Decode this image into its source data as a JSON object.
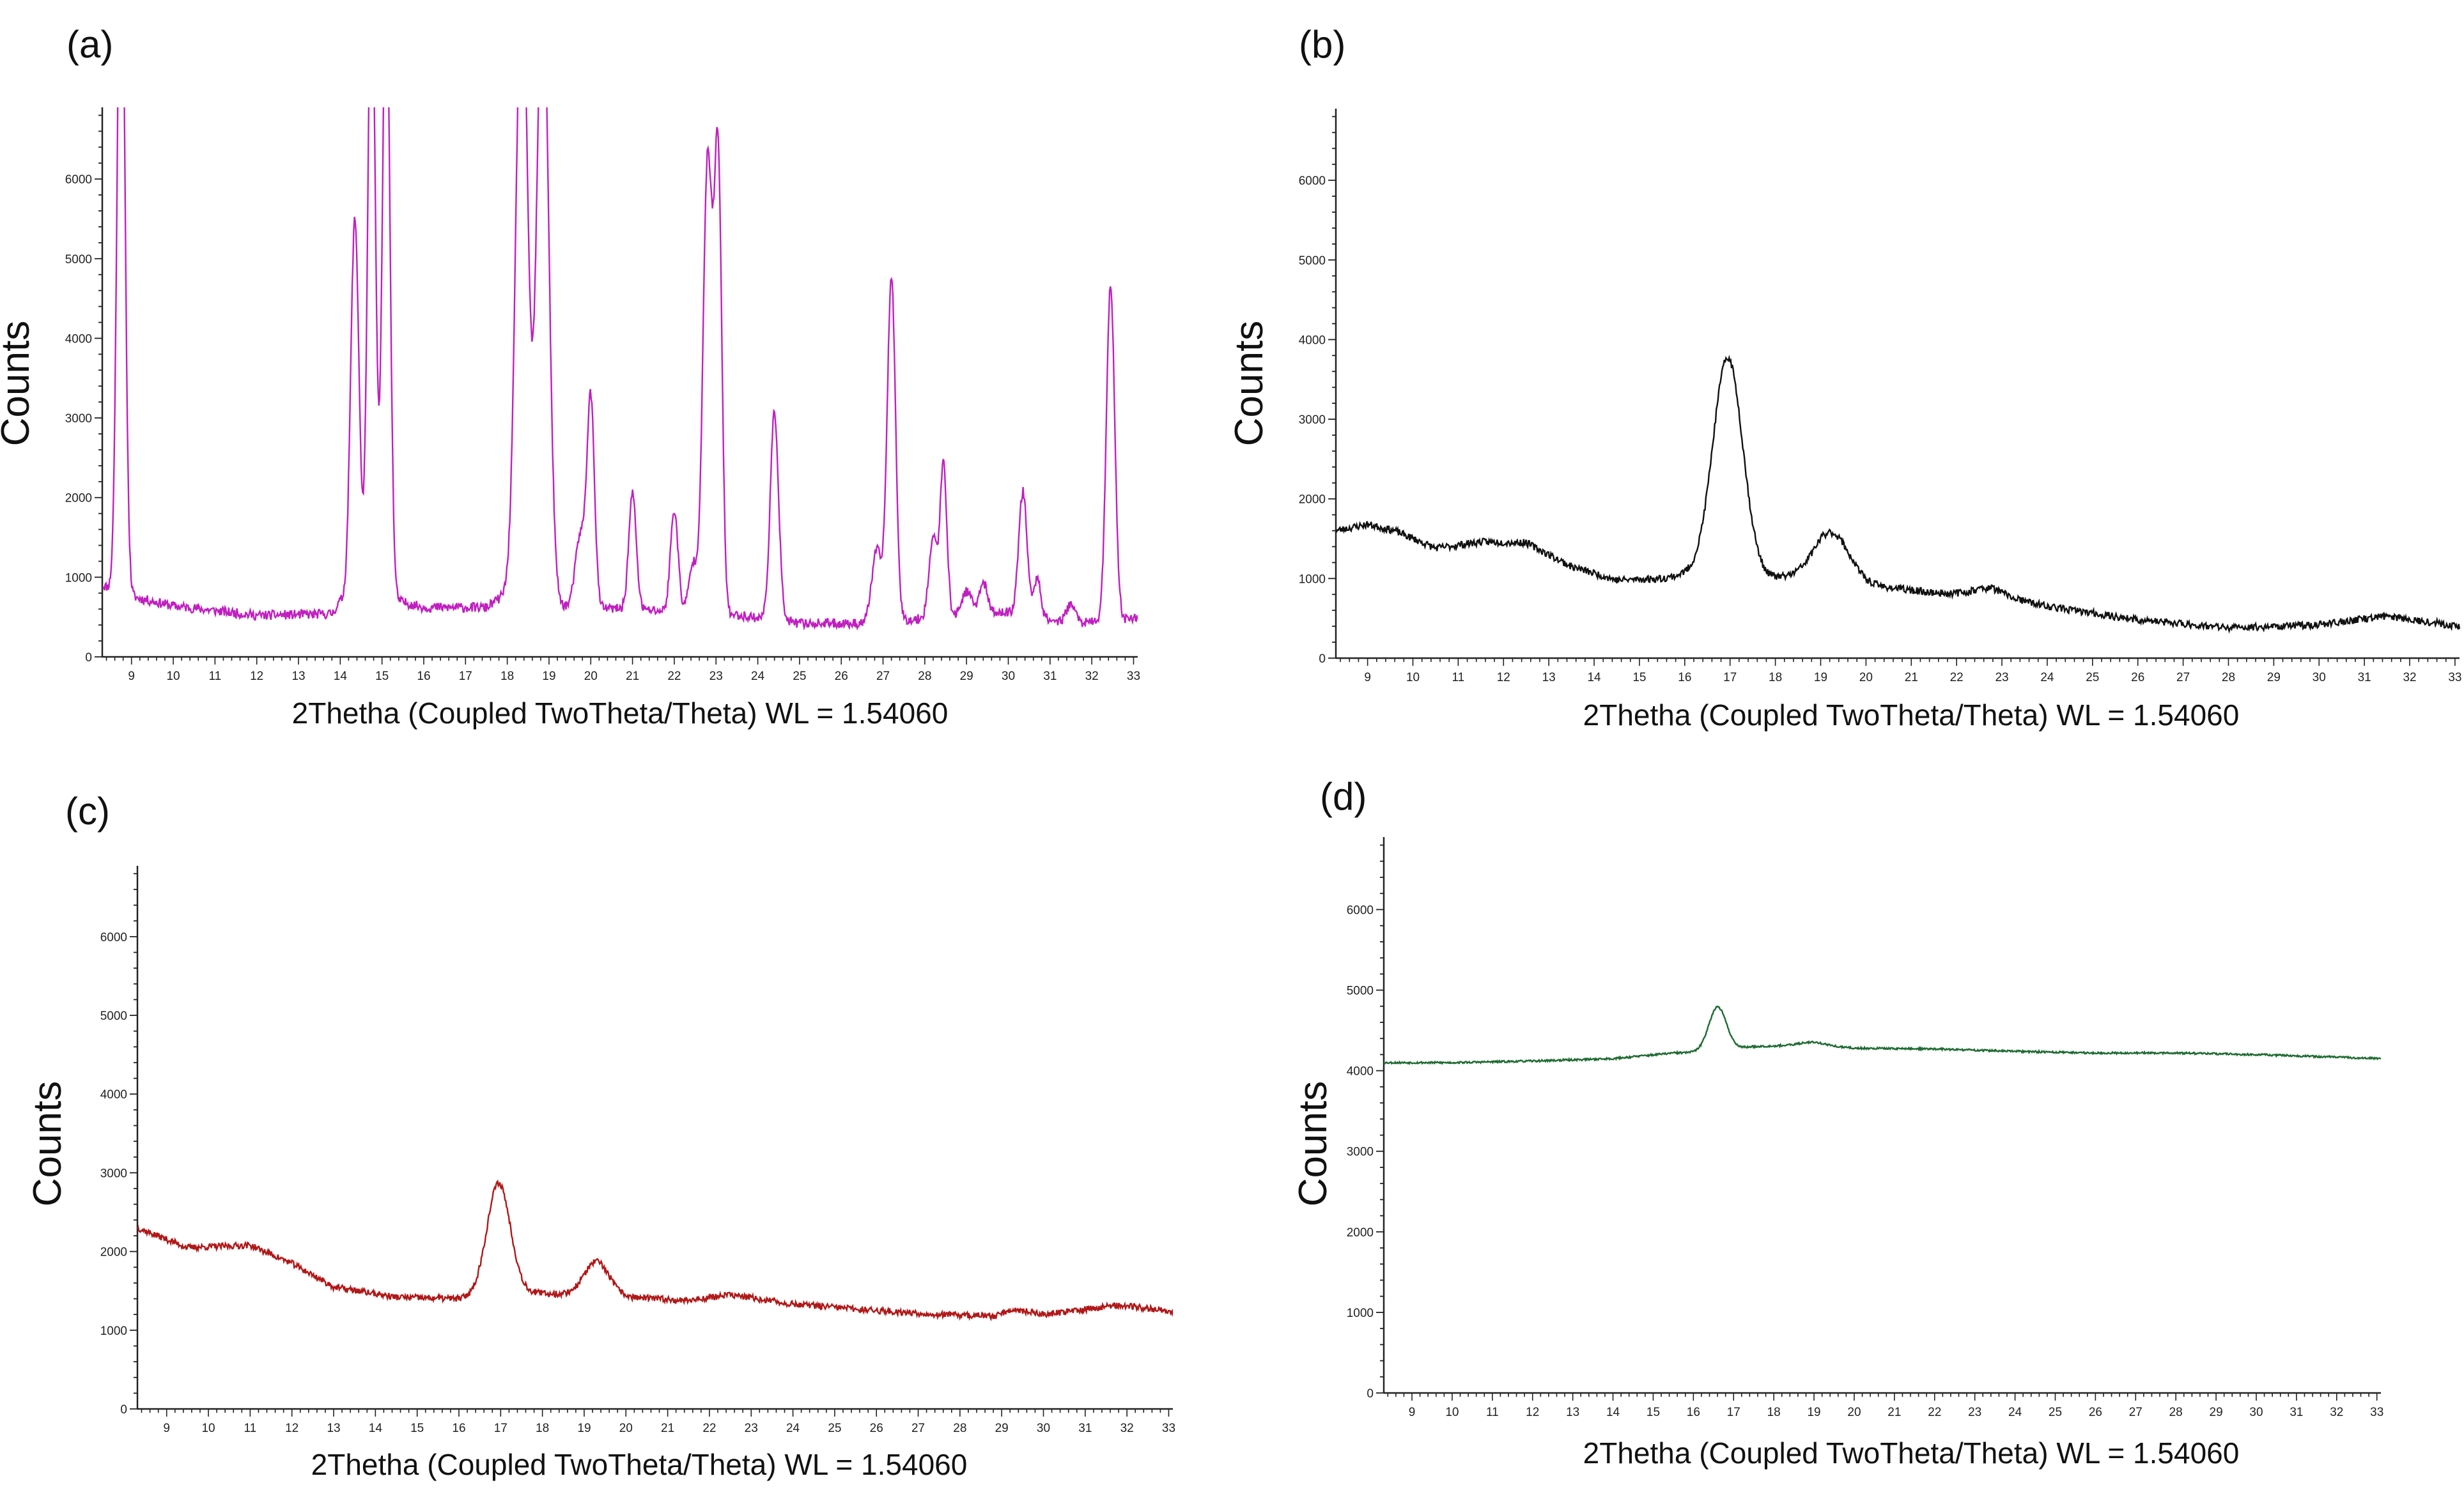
{
  "figure": {
    "panels": [
      "(a)",
      "(b)",
      "(c)",
      "(d)"
    ]
  },
  "chart_data": [
    {
      "panel": "(a)",
      "type": "line",
      "title": "",
      "xlabel": "2Thetha (Coupled TwoTheta/Theta) WL = 1.54060",
      "ylabel": "Counts",
      "xlim": [
        8.3,
        33.1
      ],
      "ylim": [
        0,
        6900
      ],
      "xticks": [
        9,
        10,
        11,
        12,
        13,
        14,
        15,
        16,
        17,
        18,
        19,
        20,
        21,
        22,
        23,
        24,
        25,
        26,
        27,
        28,
        29,
        30,
        31,
        32,
        33
      ],
      "yticks": [
        0,
        1000,
        2000,
        3000,
        4000,
        5000,
        6000
      ],
      "grid": false,
      "color": "#c020c0",
      "baseline": [
        [
          8.3,
          900
        ],
        [
          8.8,
          780
        ],
        [
          10,
          640
        ],
        [
          12,
          520
        ],
        [
          13.8,
          540
        ],
        [
          14.0,
          700
        ],
        [
          15.4,
          700
        ],
        [
          16,
          620
        ],
        [
          17.5,
          620
        ],
        [
          18.0,
          800
        ],
        [
          19.5,
          620
        ],
        [
          21,
          600
        ],
        [
          22.2,
          560
        ],
        [
          23.6,
          520
        ],
        [
          25.0,
          420
        ],
        [
          26.5,
          420
        ],
        [
          28,
          480
        ],
        [
          30,
          560
        ],
        [
          31.5,
          420
        ],
        [
          32.5,
          450
        ],
        [
          33.1,
          500
        ]
      ],
      "peaks": [
        {
          "x": 8.75,
          "y": 9000,
          "w": 0.09
        },
        {
          "x": 14.35,
          "y": 4800,
          "w": 0.1
        },
        {
          "x": 14.75,
          "y": 8200,
          "w": 0.09
        },
        {
          "x": 15.1,
          "y": 8000,
          "w": 0.09
        },
        {
          "x": 18.35,
          "y": 8000,
          "w": 0.14
        },
        {
          "x": 18.85,
          "y": 8000,
          "w": 0.14
        },
        {
          "x": 19.75,
          "y": 900,
          "w": 0.12
        },
        {
          "x": 20.0,
          "y": 2600,
          "w": 0.09
        },
        {
          "x": 21.0,
          "y": 1450,
          "w": 0.09
        },
        {
          "x": 22.0,
          "y": 1280,
          "w": 0.09
        },
        {
          "x": 22.45,
          "y": 600,
          "w": 0.1
        },
        {
          "x": 22.8,
          "y": 5700,
          "w": 0.11
        },
        {
          "x": 23.05,
          "y": 5600,
          "w": 0.09
        },
        {
          "x": 24.4,
          "y": 2600,
          "w": 0.1
        },
        {
          "x": 26.85,
          "y": 900,
          "w": 0.12
        },
        {
          "x": 27.2,
          "y": 4300,
          "w": 0.1
        },
        {
          "x": 28.2,
          "y": 1000,
          "w": 0.1
        },
        {
          "x": 28.45,
          "y": 1900,
          "w": 0.08
        },
        {
          "x": 29.0,
          "y": 300,
          "w": 0.12
        },
        {
          "x": 29.4,
          "y": 400,
          "w": 0.1
        },
        {
          "x": 30.35,
          "y": 1550,
          "w": 0.1
        },
        {
          "x": 30.7,
          "y": 500,
          "w": 0.08
        },
        {
          "x": 31.5,
          "y": 250,
          "w": 0.1
        },
        {
          "x": 32.45,
          "y": 4200,
          "w": 0.1
        }
      ],
      "noise": 60,
      "seed": 11
    },
    {
      "panel": "(b)",
      "type": "line",
      "title": "",
      "xlabel": "2Thetha (Coupled TwoTheta/Theta) WL = 1.54060",
      "ylabel": "Counts",
      "xlim": [
        8.3,
        33.1
      ],
      "ylim": [
        0,
        6900
      ],
      "xticks": [
        9,
        10,
        11,
        12,
        13,
        14,
        15,
        16,
        17,
        18,
        19,
        20,
        21,
        22,
        23,
        24,
        25,
        26,
        27,
        28,
        29,
        30,
        31,
        32,
        33
      ],
      "yticks": [
        0,
        1000,
        2000,
        3000,
        4000,
        5000,
        6000
      ],
      "grid": false,
      "color": "#111111",
      "baseline": [
        [
          8.3,
          1600
        ],
        [
          9.0,
          1680
        ],
        [
          9.6,
          1600
        ],
        [
          10.5,
          1380
        ],
        [
          11.5,
          1460
        ],
        [
          12.5,
          1450
        ],
        [
          13.5,
          1150
        ],
        [
          14.5,
          980
        ],
        [
          15.5,
          1000
        ],
        [
          16.0,
          1050
        ],
        [
          17.8,
          1000
        ],
        [
          19.0,
          1050
        ],
        [
          20.0,
          920
        ],
        [
          21.5,
          820
        ],
        [
          22.8,
          800
        ],
        [
          24.0,
          650
        ],
        [
          26.0,
          480
        ],
        [
          28.0,
          380
        ],
        [
          30.0,
          420
        ],
        [
          31.5,
          530
        ],
        [
          33.1,
          400
        ]
      ],
      "peaks": [
        {
          "x": 16.95,
          "y": 2750,
          "w": 0.33
        },
        {
          "x": 19.25,
          "y": 560,
          "w": 0.38
        },
        {
          "x": 22.7,
          "y": 80,
          "w": 0.3
        }
      ],
      "noise": 45,
      "seed": 23
    },
    {
      "panel": "(c)",
      "type": "line",
      "title": "",
      "xlabel": "2Thetha (Coupled TwoTheta/Theta) WL = 1.54060",
      "ylabel": "Counts",
      "xlim": [
        8.3,
        33.1
      ],
      "ylim": [
        0,
        6900
      ],
      "xticks": [
        9,
        10,
        11,
        12,
        13,
        14,
        15,
        16,
        17,
        18,
        19,
        20,
        21,
        22,
        23,
        24,
        25,
        26,
        27,
        28,
        29,
        30,
        31,
        32,
        33
      ],
      "yticks": [
        0,
        1000,
        2000,
        3000,
        4000,
        5000,
        6000
      ],
      "grid": false,
      "color": "#b01818",
      "baseline": [
        [
          8.3,
          2300
        ],
        [
          9.5,
          2050
        ],
        [
          11.0,
          2080
        ],
        [
          12.0,
          1850
        ],
        [
          13.0,
          1550
        ],
        [
          14.5,
          1420
        ],
        [
          16.0,
          1400
        ],
        [
          17.5,
          1480
        ],
        [
          18.8,
          1450
        ],
        [
          20.0,
          1420
        ],
        [
          21.5,
          1380
        ],
        [
          22.5,
          1450
        ],
        [
          24.0,
          1330
        ],
        [
          26.0,
          1250
        ],
        [
          27.5,
          1200
        ],
        [
          28.8,
          1180
        ],
        [
          29.3,
          1270
        ],
        [
          30.0,
          1200
        ],
        [
          31.8,
          1320
        ],
        [
          33.1,
          1240
        ]
      ],
      "peaks": [
        {
          "x": 16.95,
          "y": 1420,
          "w": 0.28
        },
        {
          "x": 19.3,
          "y": 430,
          "w": 0.3
        }
      ],
      "noise": 40,
      "seed": 37
    },
    {
      "panel": "(d)",
      "type": "line",
      "title": "",
      "xlabel": "2Thetha (Coupled TwoTheta/Theta) WL = 1.54060",
      "ylabel": "Counts",
      "xlim": [
        8.3,
        33.1
      ],
      "ylim": [
        0,
        6900
      ],
      "xticks": [
        9,
        10,
        11,
        12,
        13,
        14,
        15,
        16,
        17,
        18,
        19,
        20,
        21,
        22,
        23,
        24,
        25,
        26,
        27,
        28,
        29,
        30,
        31,
        32,
        33
      ],
      "yticks": [
        0,
        1000,
        2000,
        3000,
        4000,
        5000,
        6000
      ],
      "grid": false,
      "color": "#1e6b32",
      "baseline": [
        [
          8.3,
          4100
        ],
        [
          10,
          4100
        ],
        [
          12,
          4120
        ],
        [
          14,
          4150
        ],
        [
          15.5,
          4220
        ],
        [
          16.2,
          4230
        ],
        [
          17.5,
          4300
        ],
        [
          18.8,
          4320
        ],
        [
          20,
          4280
        ],
        [
          22,
          4270
        ],
        [
          24,
          4240
        ],
        [
          26,
          4220
        ],
        [
          28,
          4220
        ],
        [
          30,
          4200
        ],
        [
          33.1,
          4150
        ]
      ],
      "peaks": [
        {
          "x": 16.6,
          "y": 540,
          "w": 0.22
        },
        {
          "x": 19.0,
          "y": 40,
          "w": 0.3
        }
      ],
      "noise": 12,
      "seed": 53
    }
  ]
}
